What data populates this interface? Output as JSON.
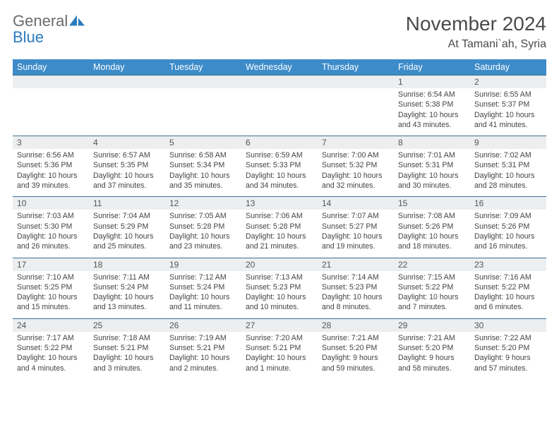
{
  "logo": {
    "word1": "General",
    "word2": "Blue"
  },
  "title": "November 2024",
  "location": "At Tamani`ah, Syria",
  "colors": {
    "header_bg": "#3d8bc9",
    "header_fg": "#ffffff",
    "daynum_bg": "#eceef0",
    "daynum_border": "#3d7094",
    "body_text": "#444444",
    "title_text": "#4a4a4a",
    "logo_gray": "#6b6b6b",
    "logo_blue": "#2b7bbf",
    "page_bg": "#ffffff"
  },
  "weekdays": [
    "Sunday",
    "Monday",
    "Tuesday",
    "Wednesday",
    "Thursday",
    "Friday",
    "Saturday"
  ],
  "weeks": [
    [
      null,
      null,
      null,
      null,
      null,
      {
        "n": "1",
        "sr": "6:54 AM",
        "ss": "5:38 PM",
        "dl": "10 hours and 43 minutes."
      },
      {
        "n": "2",
        "sr": "6:55 AM",
        "ss": "5:37 PM",
        "dl": "10 hours and 41 minutes."
      }
    ],
    [
      {
        "n": "3",
        "sr": "6:56 AM",
        "ss": "5:36 PM",
        "dl": "10 hours and 39 minutes."
      },
      {
        "n": "4",
        "sr": "6:57 AM",
        "ss": "5:35 PM",
        "dl": "10 hours and 37 minutes."
      },
      {
        "n": "5",
        "sr": "6:58 AM",
        "ss": "5:34 PM",
        "dl": "10 hours and 35 minutes."
      },
      {
        "n": "6",
        "sr": "6:59 AM",
        "ss": "5:33 PM",
        "dl": "10 hours and 34 minutes."
      },
      {
        "n": "7",
        "sr": "7:00 AM",
        "ss": "5:32 PM",
        "dl": "10 hours and 32 minutes."
      },
      {
        "n": "8",
        "sr": "7:01 AM",
        "ss": "5:31 PM",
        "dl": "10 hours and 30 minutes."
      },
      {
        "n": "9",
        "sr": "7:02 AM",
        "ss": "5:31 PM",
        "dl": "10 hours and 28 minutes."
      }
    ],
    [
      {
        "n": "10",
        "sr": "7:03 AM",
        "ss": "5:30 PM",
        "dl": "10 hours and 26 minutes."
      },
      {
        "n": "11",
        "sr": "7:04 AM",
        "ss": "5:29 PM",
        "dl": "10 hours and 25 minutes."
      },
      {
        "n": "12",
        "sr": "7:05 AM",
        "ss": "5:28 PM",
        "dl": "10 hours and 23 minutes."
      },
      {
        "n": "13",
        "sr": "7:06 AM",
        "ss": "5:28 PM",
        "dl": "10 hours and 21 minutes."
      },
      {
        "n": "14",
        "sr": "7:07 AM",
        "ss": "5:27 PM",
        "dl": "10 hours and 19 minutes."
      },
      {
        "n": "15",
        "sr": "7:08 AM",
        "ss": "5:26 PM",
        "dl": "10 hours and 18 minutes."
      },
      {
        "n": "16",
        "sr": "7:09 AM",
        "ss": "5:26 PM",
        "dl": "10 hours and 16 minutes."
      }
    ],
    [
      {
        "n": "17",
        "sr": "7:10 AM",
        "ss": "5:25 PM",
        "dl": "10 hours and 15 minutes."
      },
      {
        "n": "18",
        "sr": "7:11 AM",
        "ss": "5:24 PM",
        "dl": "10 hours and 13 minutes."
      },
      {
        "n": "19",
        "sr": "7:12 AM",
        "ss": "5:24 PM",
        "dl": "10 hours and 11 minutes."
      },
      {
        "n": "20",
        "sr": "7:13 AM",
        "ss": "5:23 PM",
        "dl": "10 hours and 10 minutes."
      },
      {
        "n": "21",
        "sr": "7:14 AM",
        "ss": "5:23 PM",
        "dl": "10 hours and 8 minutes."
      },
      {
        "n": "22",
        "sr": "7:15 AM",
        "ss": "5:22 PM",
        "dl": "10 hours and 7 minutes."
      },
      {
        "n": "23",
        "sr": "7:16 AM",
        "ss": "5:22 PM",
        "dl": "10 hours and 6 minutes."
      }
    ],
    [
      {
        "n": "24",
        "sr": "7:17 AM",
        "ss": "5:22 PM",
        "dl": "10 hours and 4 minutes."
      },
      {
        "n": "25",
        "sr": "7:18 AM",
        "ss": "5:21 PM",
        "dl": "10 hours and 3 minutes."
      },
      {
        "n": "26",
        "sr": "7:19 AM",
        "ss": "5:21 PM",
        "dl": "10 hours and 2 minutes."
      },
      {
        "n": "27",
        "sr": "7:20 AM",
        "ss": "5:21 PM",
        "dl": "10 hours and 1 minute."
      },
      {
        "n": "28",
        "sr": "7:21 AM",
        "ss": "5:20 PM",
        "dl": "9 hours and 59 minutes."
      },
      {
        "n": "29",
        "sr": "7:21 AM",
        "ss": "5:20 PM",
        "dl": "9 hours and 58 minutes."
      },
      {
        "n": "30",
        "sr": "7:22 AM",
        "ss": "5:20 PM",
        "dl": "9 hours and 57 minutes."
      }
    ]
  ],
  "labels": {
    "sunrise": "Sunrise:",
    "sunset": "Sunset:",
    "daylight": "Daylight:"
  }
}
